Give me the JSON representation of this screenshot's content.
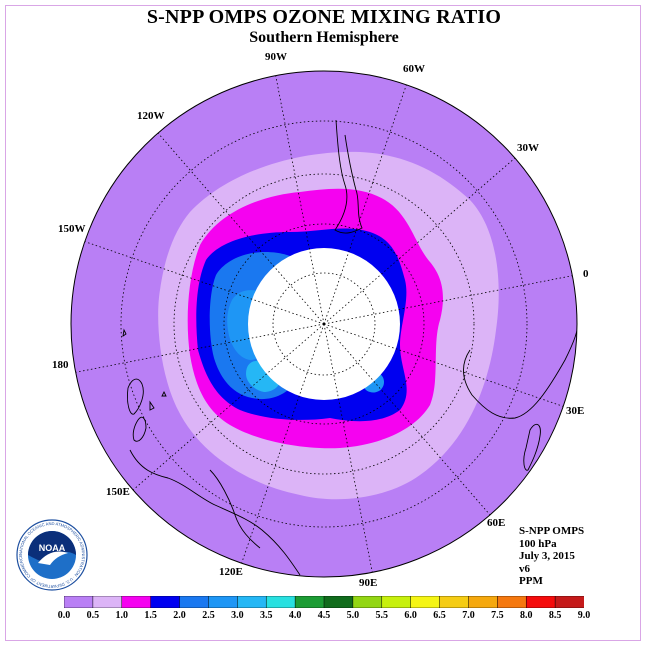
{
  "title": "S-NPP OMPS OZONE MIXING RATIO",
  "subtitle": "Southern Hemisphere",
  "longitude_labels": [
    "90W",
    "60W",
    "30W",
    "0",
    "30E",
    "60E",
    "90E",
    "120E",
    "150E",
    "180",
    "150W",
    "120W"
  ],
  "info": {
    "product": "S-NPP OMPS",
    "level": "100 hPa",
    "date": "July 3, 2015",
    "version": "v6",
    "units": "PPM"
  },
  "logo": {
    "text": "NOAA",
    "ring_text": "NATIONAL OCEANIC AND ATMOSPHERIC ADMINISTRATION · U.S. DEPARTMENT OF COMMERCE"
  },
  "colorbar": {
    "ticks": [
      "0.0",
      "0.5",
      "1.0",
      "1.5",
      "2.0",
      "2.5",
      "3.0",
      "3.5",
      "4.0",
      "4.5",
      "5.0",
      "5.5",
      "6.0",
      "6.5",
      "7.0",
      "7.5",
      "8.0",
      "8.5",
      "9.0"
    ],
    "colors": [
      "#b97ff5",
      "#dcb4f7",
      "#f502f0",
      "#0000f0",
      "#1a78f0",
      "#1e96f5",
      "#25b7f5",
      "#28e0e0",
      "#1c9c34",
      "#116c1c",
      "#93d613",
      "#c7f00d",
      "#f5f514",
      "#f5cc14",
      "#f5a80e",
      "#f5780f",
      "#f50c0c",
      "#c51a1a",
      "#8a5a3c"
    ]
  },
  "colors": {
    "background_field": "#b97ff5",
    "frame": "#d9a6e6"
  }
}
